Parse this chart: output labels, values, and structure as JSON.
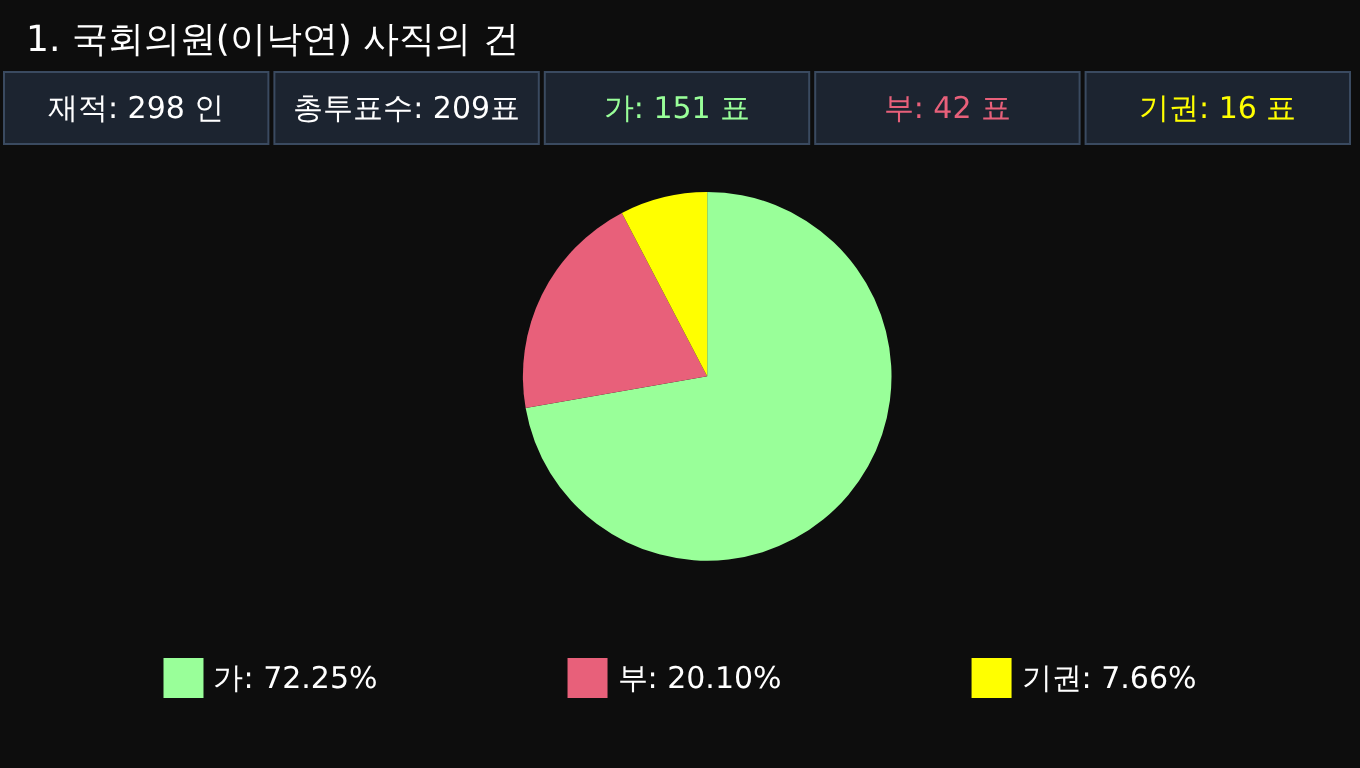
{
  "chart_data": {
    "type": "pie",
    "title": "1. 국회의원(이낙연) 사직의 건",
    "annotations": [
      "재적: 298 인",
      "총투표수: 209표",
      "가: 151 표",
      "부: 42 표",
      "기권: 16 표"
    ],
    "categories": [
      "가",
      "부",
      "기권"
    ],
    "values": [
      72.25,
      20.1,
      7.66
    ],
    "value_labels": [
      "72.25%",
      "20.10%",
      "7.66%"
    ],
    "colors": [
      "#99ff99",
      "#e8607a",
      "#ffff00"
    ],
    "legend": "bottom"
  }
}
